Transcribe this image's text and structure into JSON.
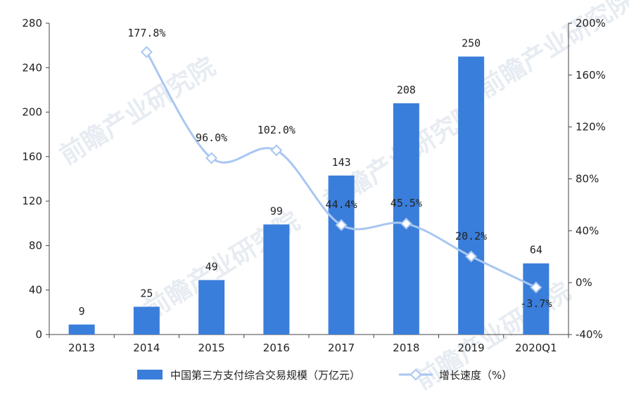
{
  "chart_data": {
    "type": "bar",
    "categories": [
      "2013",
      "2014",
      "2015",
      "2016",
      "2017",
      "2018",
      "2019",
      "2020Q1"
    ],
    "series": [
      {
        "name": "中国第三方支付综合交易规模（万亿元）",
        "type": "bar",
        "axis": "left",
        "values": [
          9,
          25,
          49,
          99,
          143,
          208,
          250,
          64
        ],
        "labels": [
          "9",
          "25",
          "49",
          "99",
          "143",
          "208",
          "250",
          "64"
        ],
        "color": "#3a7edb"
      },
      {
        "name": "增长速度（%）",
        "type": "line",
        "axis": "right",
        "values": [
          null,
          177.8,
          96.0,
          102.0,
          44.4,
          45.5,
          20.2,
          -3.7
        ],
        "labels": [
          "",
          "177.8%",
          "96.0%",
          "102.0%",
          "44.4%",
          "45.5%",
          "20.2%",
          "-3.7%"
        ],
        "color": "#a9c7f1"
      }
    ],
    "y_left": {
      "ylim": [
        0,
        280
      ],
      "ticks": [
        "0",
        "40",
        "80",
        "120",
        "160",
        "200",
        "240",
        "280"
      ]
    },
    "y_right": {
      "ylim": [
        -40,
        200
      ],
      "ticks": [
        "-40%",
        "0%",
        "40%",
        "80%",
        "120%",
        "160%",
        "200%"
      ]
    },
    "legend_position": "bottom",
    "grid": false
  },
  "watermark": {
    "text": "前瞻产业研究院"
  }
}
